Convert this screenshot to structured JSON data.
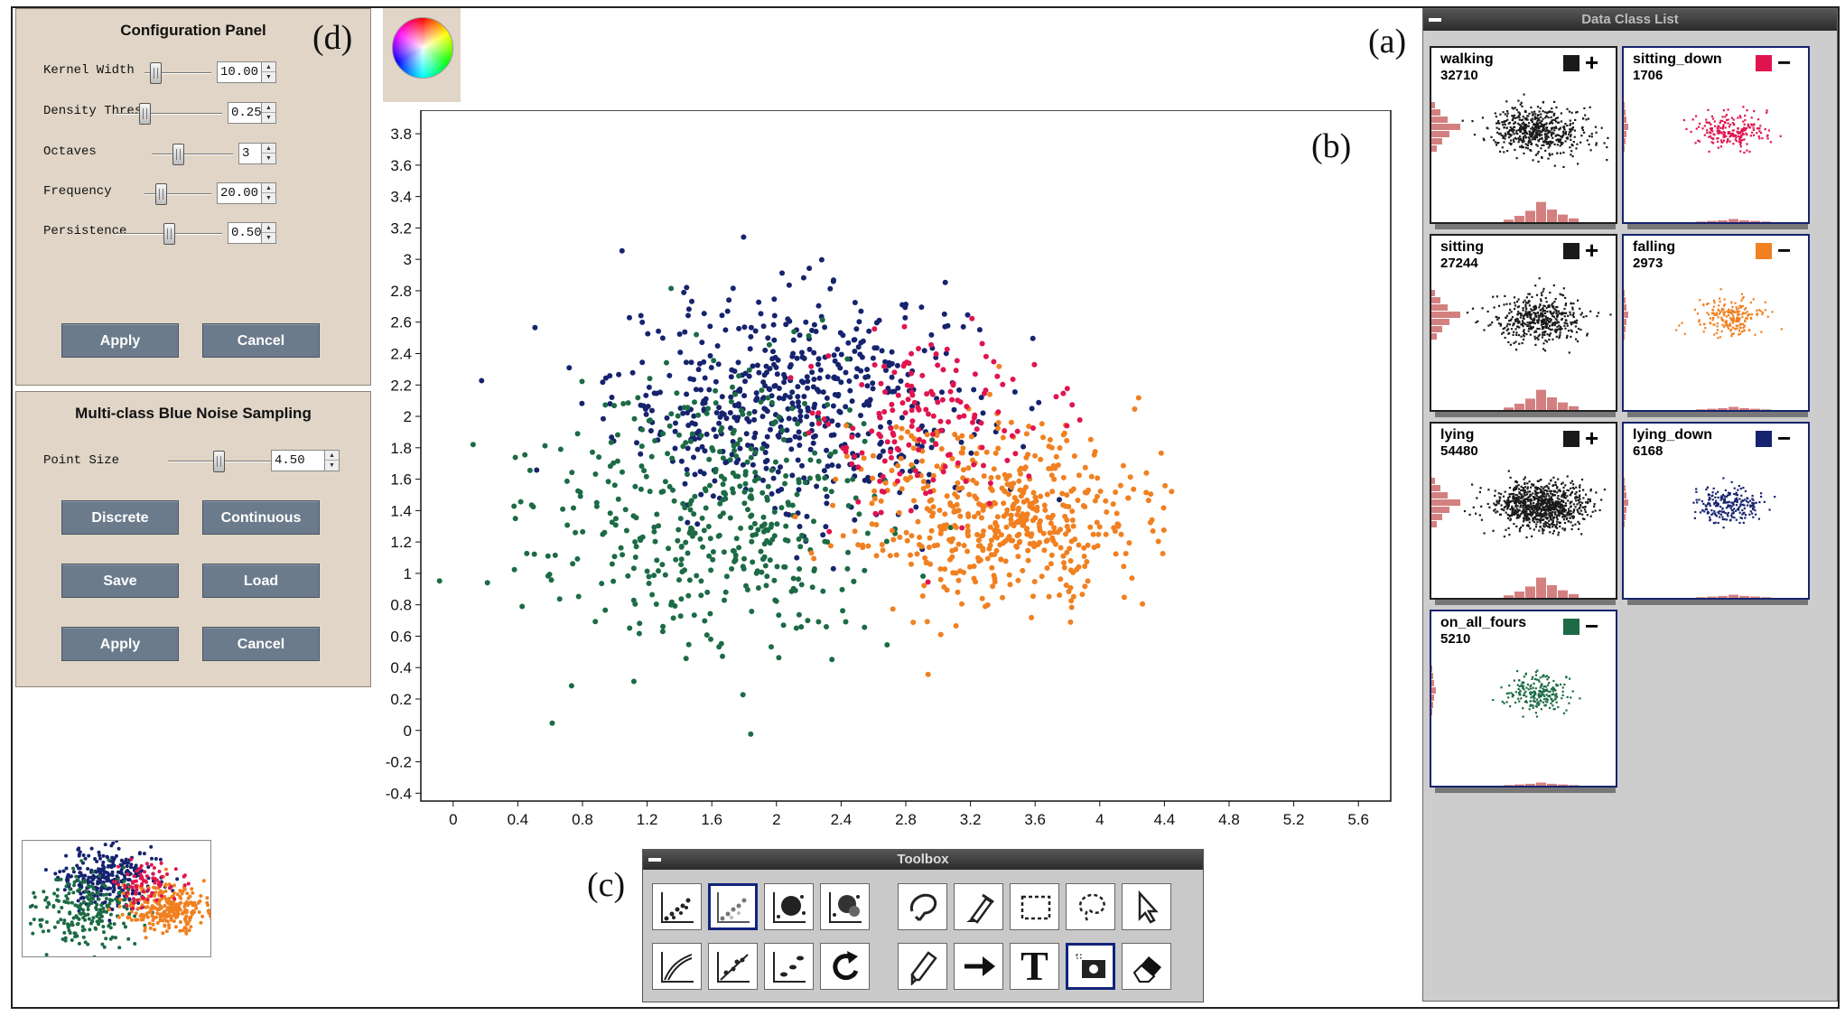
{
  "config_panel": {
    "title": "Configuration Panel",
    "letter": "(d)",
    "params": [
      {
        "label": "Kernel Width",
        "value": "10.00",
        "level": 0.1
      },
      {
        "label": "Density Thres.",
        "value": "0.25",
        "level": 0.25
      },
      {
        "label": "Octaves",
        "value": "3",
        "level": 0.3
      },
      {
        "label": "Frequency",
        "value": "20.00",
        "level": 0.2
      },
      {
        "label": "Persistence",
        "value": "0.50",
        "level": 0.5
      }
    ],
    "apply_label": "Apply",
    "cancel_label": "Cancel"
  },
  "sampling_panel": {
    "title": "Multi-class Blue Noise Sampling",
    "point_size_label": "Point Size",
    "point_size_value": "4.50",
    "point_size_level": 0.45,
    "discrete_label": "Discrete",
    "continuous_label": "Continuous",
    "save_label": "Save",
    "load_label": "Load",
    "apply_label": "Apply",
    "cancel_label": "Cancel"
  },
  "plot_letter": "(b)",
  "toolbox": {
    "title": "Toolbox",
    "letter": "(c)",
    "row1": [
      "scatter-dots-icon",
      "faded-scatter-icon",
      "density-blob-icon",
      "density-splat-icon",
      "lasso-fill-icon",
      "paint-brush-icon",
      "rect-select-icon",
      "lasso-select-icon",
      "pointer-icon"
    ],
    "row2": [
      "curve-fit-icon",
      "regression-icon",
      "cluster-split-icon",
      "refresh-icon",
      "pen-icon",
      "arrow-icon",
      "text-icon",
      "camera-icon",
      "eraser-icon"
    ],
    "text_tool_glyph": "T"
  },
  "class_list": {
    "title": "Data Class List",
    "letter": "(a)",
    "classes": [
      {
        "name": "walking",
        "count": "32710",
        "color": "#1a1a1a",
        "toggle": "+"
      },
      {
        "name": "sitting_down",
        "count": "1706",
        "color": "#e0154f",
        "toggle": "−"
      },
      {
        "name": "sitting",
        "count": "27244",
        "color": "#1a1a1a",
        "toggle": "+"
      },
      {
        "name": "falling",
        "count": "2973",
        "color": "#f08020",
        "toggle": "−"
      },
      {
        "name": "lying",
        "count": "54480",
        "color": "#1a1a1a",
        "toggle": "+"
      },
      {
        "name": "lying_down",
        "count": "6168",
        "color": "#16236e",
        "toggle": "−"
      },
      {
        "name": "on_all_fours",
        "count": "5210",
        "color": "#1c6b45",
        "toggle": "−"
      }
    ]
  },
  "chart_data": {
    "type": "scatter",
    "xlim": [
      -0.2,
      5.8
    ],
    "ylim": [
      -0.45,
      3.95
    ],
    "x_ticks": [
      "0",
      "0.4",
      "0.8",
      "1.2",
      "1.6",
      "2",
      "2.4",
      "2.8",
      "3.2",
      "3.6",
      "4",
      "4.4",
      "4.8",
      "5.2",
      "5.6"
    ],
    "y_ticks": [
      "-0.4",
      "-0.2",
      "0",
      "0.2",
      "0.4",
      "0.6",
      "0.8",
      "1",
      "1.2",
      "1.4",
      "1.6",
      "1.8",
      "2",
      "2.2",
      "2.4",
      "2.6",
      "2.8",
      "3",
      "3.2",
      "3.4",
      "3.6",
      "3.8"
    ],
    "grid": false,
    "series": [
      {
        "color": "#16236e",
        "center": [
          2.1,
          2.1
        ],
        "spread": [
          0.55,
          0.35
        ],
        "count": 560
      },
      {
        "color": "#1c6b45",
        "center": [
          1.6,
          1.4
        ],
        "spread": [
          0.55,
          0.45
        ],
        "count": 460
      },
      {
        "color": "#f08020",
        "center": [
          3.4,
          1.35
        ],
        "spread": [
          0.45,
          0.3
        ],
        "count": 520
      },
      {
        "color": "#e0154f",
        "center": [
          2.9,
          1.95
        ],
        "spread": [
          0.35,
          0.3
        ],
        "count": 160
      }
    ]
  }
}
